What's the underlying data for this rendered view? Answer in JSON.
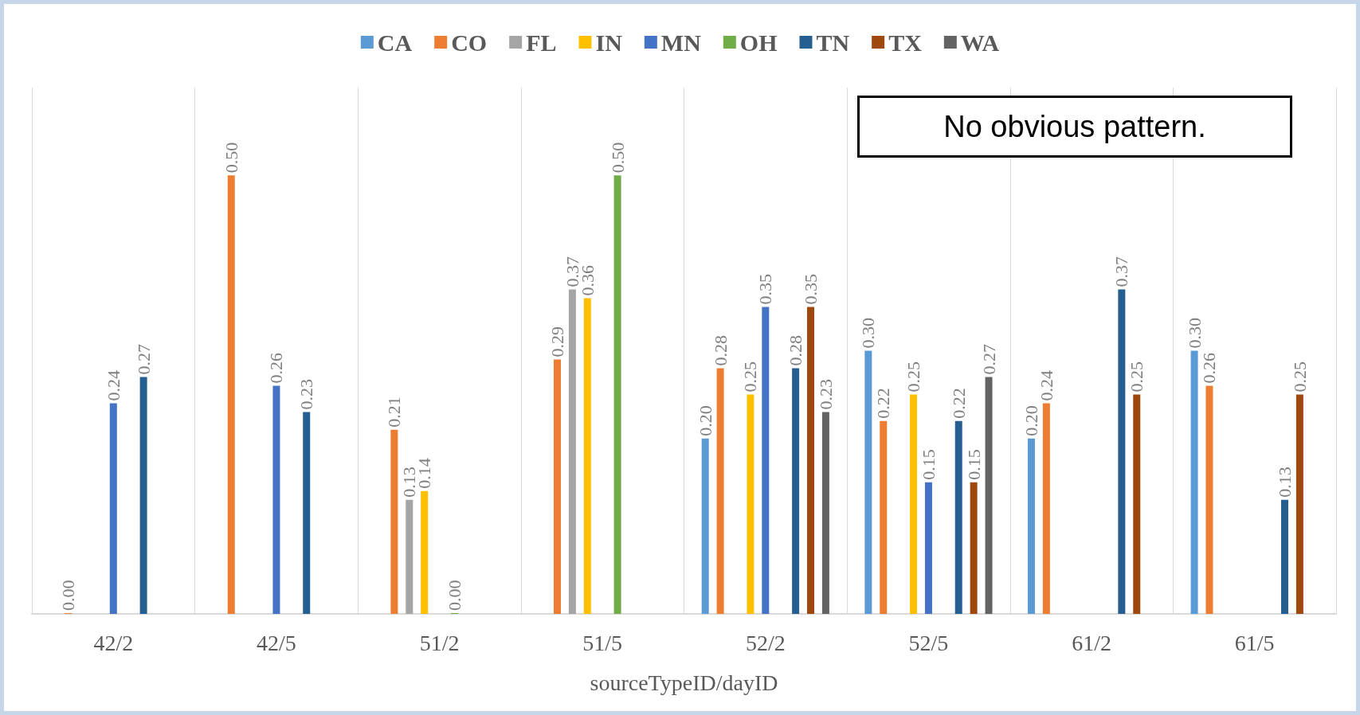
{
  "chart_data": {
    "type": "bar",
    "xlabel": "sourceTypeID/dayID",
    "categories": [
      "42/2",
      "42/5",
      "51/2",
      "51/5",
      "52/2",
      "52/5",
      "61/2",
      "61/5"
    ],
    "series": [
      {
        "name": "CA",
        "color": "#5b9bd5",
        "values": [
          null,
          null,
          null,
          null,
          0.2,
          0.3,
          0.2,
          0.3
        ],
        "value_labels": [
          null,
          null,
          null,
          null,
          "0.20",
          "0.30",
          "0.20",
          "0.30"
        ]
      },
      {
        "name": "CO",
        "color": "#ed7d31",
        "values": [
          0.0,
          0.5,
          0.21,
          0.29,
          0.28,
          0.22,
          0.24,
          0.26
        ],
        "value_labels": [
          "0.00",
          "0.50",
          "0.21",
          "0.29",
          "0.28",
          "0.22",
          "0.24",
          "0.26"
        ]
      },
      {
        "name": "FL",
        "color": "#a5a5a5",
        "values": [
          null,
          null,
          0.13,
          0.37,
          null,
          null,
          null,
          null
        ],
        "value_labels": [
          null,
          null,
          "0.13",
          "0.37",
          null,
          null,
          null,
          null
        ]
      },
      {
        "name": "IN",
        "color": "#ffc000",
        "values": [
          null,
          null,
          0.14,
          0.36,
          0.25,
          0.25,
          null,
          null
        ],
        "value_labels": [
          null,
          null,
          "0.14",
          "0.36",
          "0.25",
          "0.25",
          null,
          null
        ]
      },
      {
        "name": "MN",
        "color": "#4472c4",
        "values": [
          0.24,
          0.26,
          null,
          null,
          0.35,
          0.15,
          null,
          null
        ],
        "value_labels": [
          "0.24",
          "0.26",
          null,
          null,
          "0.35",
          "0.15",
          null,
          null
        ]
      },
      {
        "name": "OH",
        "color": "#70ad47",
        "values": [
          null,
          null,
          0.0,
          0.5,
          null,
          null,
          null,
          null
        ],
        "value_labels": [
          null,
          null,
          "0.00",
          "0.50",
          null,
          null,
          null,
          null
        ]
      },
      {
        "name": "TN",
        "color": "#255e91",
        "values": [
          0.27,
          0.23,
          null,
          null,
          0.28,
          0.22,
          0.37,
          0.13
        ],
        "value_labels": [
          "0.27",
          "0.23",
          null,
          null,
          "0.28",
          "0.22",
          "0.37",
          "0.13"
        ]
      },
      {
        "name": "TX",
        "color": "#9e480e",
        "values": [
          null,
          null,
          null,
          null,
          0.35,
          0.15,
          0.25,
          0.25
        ],
        "value_labels": [
          null,
          null,
          null,
          null,
          "0.35",
          "0.15",
          "0.25",
          "0.25"
        ]
      },
      {
        "name": "WA",
        "color": "#636363",
        "values": [
          null,
          null,
          null,
          null,
          0.23,
          0.27,
          null,
          null
        ],
        "value_labels": [
          null,
          null,
          null,
          null,
          "0.23",
          "0.27",
          null,
          null
        ]
      }
    ],
    "annotations": [
      "No obvious pattern."
    ],
    "grid": "x",
    "legend": "top"
  }
}
